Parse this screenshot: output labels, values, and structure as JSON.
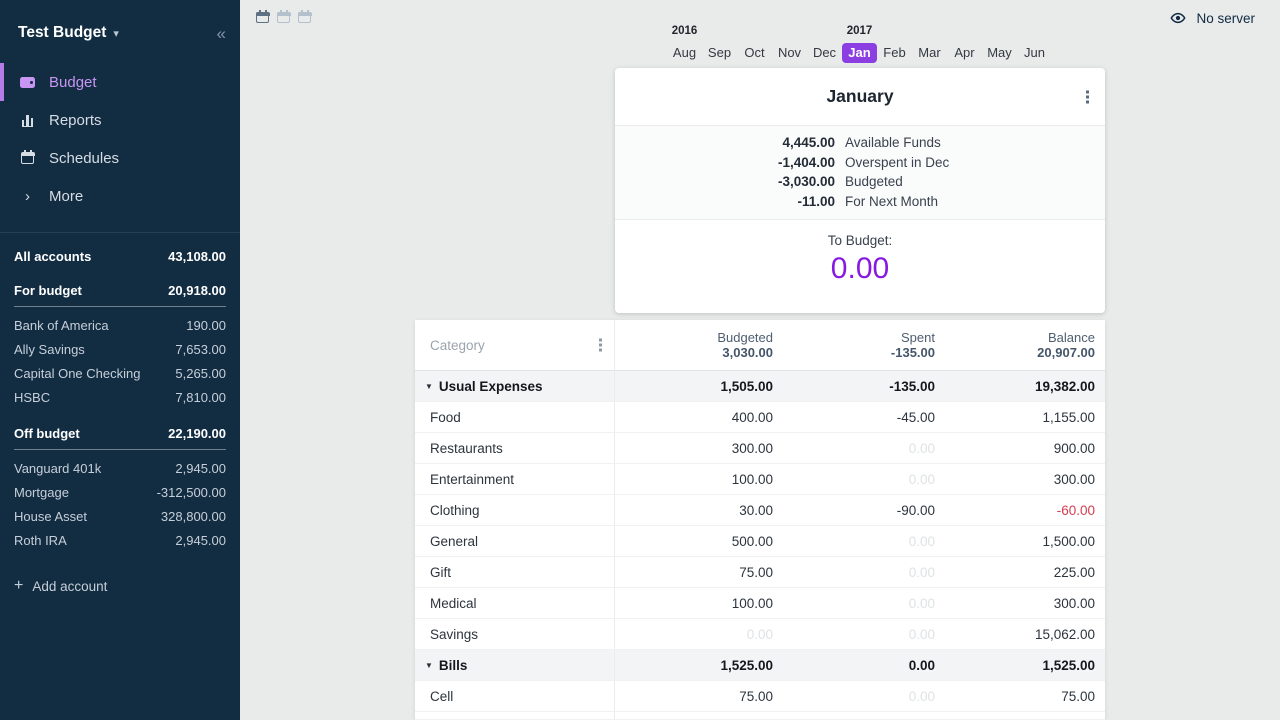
{
  "sidebar": {
    "title": "Test Budget",
    "nav_items": [
      {
        "label": "Budget",
        "icon": "wallet-icon",
        "active": true
      },
      {
        "label": "Reports",
        "icon": "bar-chart-icon",
        "active": false
      },
      {
        "label": "Schedules",
        "icon": "calendar-icon",
        "active": false
      },
      {
        "label": "More",
        "icon": "chevron-right-icon",
        "active": false
      }
    ],
    "all_accounts": {
      "label": "All accounts",
      "value": "43,108.00"
    },
    "groups": [
      {
        "label": "For budget",
        "value": "20,918.00",
        "accounts": [
          {
            "name": "Bank of America",
            "value": "190.00"
          },
          {
            "name": "Ally Savings",
            "value": "7,653.00"
          },
          {
            "name": "Capital One Checking",
            "value": "5,265.00"
          },
          {
            "name": "HSBC",
            "value": "7,810.00"
          }
        ]
      },
      {
        "label": "Off budget",
        "value": "22,190.00",
        "accounts": [
          {
            "name": "Vanguard 401k",
            "value": "2,945.00"
          },
          {
            "name": "Mortgage",
            "value": "-312,500.00"
          },
          {
            "name": "House Asset",
            "value": "328,800.00"
          },
          {
            "name": "Roth IRA",
            "value": "2,945.00"
          }
        ]
      }
    ],
    "add_account_label": "Add account"
  },
  "topbar": {
    "server_status": "No server"
  },
  "month_nav": {
    "months": [
      "Aug",
      "Sep",
      "Oct",
      "Nov",
      "Dec",
      "Jan",
      "Feb",
      "Mar",
      "Apr",
      "May",
      "Jun"
    ],
    "selected_month": "Jan",
    "year_labels": [
      {
        "text": "2016",
        "month_index": 0
      },
      {
        "text": "2017",
        "month_index": 5
      }
    ]
  },
  "month_card": {
    "title": "January",
    "summary_rows": [
      {
        "value": "4,445.00",
        "label": "Available Funds"
      },
      {
        "value": "-1,404.00",
        "label": "Overspent in Dec"
      },
      {
        "value": "-3,030.00",
        "label": "Budgeted"
      },
      {
        "value": "-11.00",
        "label": "For Next Month"
      }
    ],
    "to_budget_label": "To Budget:",
    "to_budget_value": "0.00"
  },
  "budget_table": {
    "category_header": "Category",
    "columns": [
      {
        "label": "Budgeted",
        "total": "3,030.00"
      },
      {
        "label": "Spent",
        "total": "-135.00"
      },
      {
        "label": "Balance",
        "total": "20,907.00"
      }
    ],
    "groups": [
      {
        "name": "Usual Expenses",
        "budgeted": "1,505.00",
        "spent": "-135.00",
        "balance": "19,382.00",
        "rows": [
          {
            "name": "Food",
            "budgeted": "400.00",
            "spent": "-45.00",
            "balance": "1,155.00"
          },
          {
            "name": "Restaurants",
            "budgeted": "300.00",
            "spent": "0.00",
            "balance": "900.00"
          },
          {
            "name": "Entertainment",
            "budgeted": "100.00",
            "spent": "0.00",
            "balance": "300.00"
          },
          {
            "name": "Clothing",
            "budgeted": "30.00",
            "spent": "-90.00",
            "balance": "-60.00"
          },
          {
            "name": "General",
            "budgeted": "500.00",
            "spent": "0.00",
            "balance": "1,500.00"
          },
          {
            "name": "Gift",
            "budgeted": "75.00",
            "spent": "0.00",
            "balance": "225.00"
          },
          {
            "name": "Medical",
            "budgeted": "100.00",
            "spent": "0.00",
            "balance": "300.00"
          },
          {
            "name": "Savings",
            "budgeted": "0.00",
            "spent": "0.00",
            "balance": "15,062.00"
          }
        ]
      },
      {
        "name": "Bills",
        "budgeted": "1,525.00",
        "spent": "0.00",
        "balance": "1,525.00",
        "rows": [
          {
            "name": "Cell",
            "budgeted": "75.00",
            "spent": "0.00",
            "balance": "75.00"
          }
        ]
      }
    ]
  },
  "colors": {
    "sidebar_bg": "#122c42",
    "accent_purple": "#8719e0",
    "selected_month_bg": "#8b3fe3",
    "active_nav_purple": "#c795f2",
    "negative_red": "#d43d4f",
    "content_bg": "#e9eaea"
  }
}
